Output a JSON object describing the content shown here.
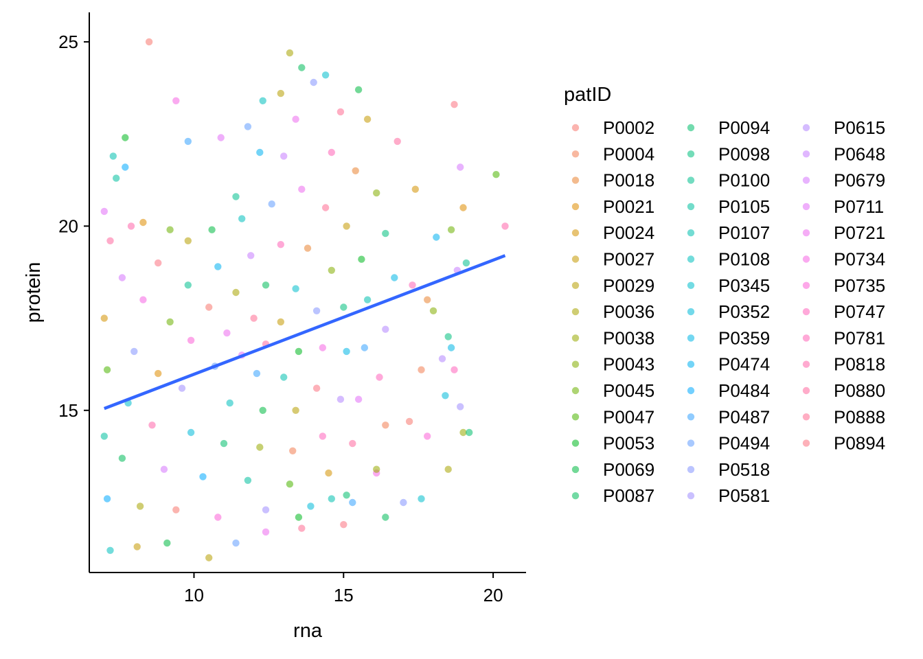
{
  "chart_data": {
    "type": "scatter",
    "title": "",
    "xlabel": "rna",
    "ylabel": "protein",
    "xlim": [
      6.5,
      21.1
    ],
    "ylim": [
      10.6,
      25.8
    ],
    "x_ticks": [
      10,
      15,
      20
    ],
    "y_ticks": [
      15,
      20,
      25
    ],
    "x_tick_labels": [
      "10",
      "15",
      "20"
    ],
    "y_tick_labels": [
      "15",
      "20",
      "25"
    ],
    "grid": false,
    "point_alpha": 0.55,
    "legend": {
      "title": "patID",
      "placement": "right",
      "columns": 3,
      "entries": [
        {
          "name": "P0002",
          "color": "#F8766D"
        },
        {
          "name": "P0004",
          "color": "#F27D52"
        },
        {
          "name": "P0018",
          "color": "#EA8331"
        },
        {
          "name": "P0021",
          "color": "#DE8C00"
        },
        {
          "name": "P0024",
          "color": "#D39200"
        },
        {
          "name": "P0027",
          "color": "#C59900"
        },
        {
          "name": "P0029",
          "color": "#B79F00"
        },
        {
          "name": "P0036",
          "color": "#A8A400"
        },
        {
          "name": "P0038",
          "color": "#97A900"
        },
        {
          "name": "P0043",
          "color": "#83AD00"
        },
        {
          "name": "P0045",
          "color": "#6BB100"
        },
        {
          "name": "P0047",
          "color": "#4BB400"
        },
        {
          "name": "P0053",
          "color": "#00B81F"
        },
        {
          "name": "P0069",
          "color": "#00BA42"
        },
        {
          "name": "P0087",
          "color": "#00BC59"
        },
        {
          "name": "P0094",
          "color": "#00BE6C"
        },
        {
          "name": "P0098",
          "color": "#00BF7D"
        },
        {
          "name": "P0100",
          "color": "#00C08E"
        },
        {
          "name": "P0105",
          "color": "#00C09F"
        },
        {
          "name": "P0107",
          "color": "#00C0AF"
        },
        {
          "name": "P0108",
          "color": "#00BFBE"
        },
        {
          "name": "P0345",
          "color": "#00BDCC"
        },
        {
          "name": "P0352",
          "color": "#00BAD9"
        },
        {
          "name": "P0359",
          "color": "#00B6E5"
        },
        {
          "name": "P0474",
          "color": "#00B0F0"
        },
        {
          "name": "P0484",
          "color": "#00A9FF"
        },
        {
          "name": "P0487",
          "color": "#35A2FF"
        },
        {
          "name": "P0494",
          "color": "#619CFF"
        },
        {
          "name": "P0518",
          "color": "#8494FF"
        },
        {
          "name": "P0581",
          "color": "#9F8CFF"
        },
        {
          "name": "P0615",
          "color": "#B385FF"
        },
        {
          "name": "P0648",
          "color": "#C77CFF"
        },
        {
          "name": "P0679",
          "color": "#D575FE"
        },
        {
          "name": "P0711",
          "color": "#E26EF7"
        },
        {
          "name": "P0721",
          "color": "#EC69EF"
        },
        {
          "name": "P0734",
          "color": "#F564E3"
        },
        {
          "name": "P0735",
          "color": "#FB61D7"
        },
        {
          "name": "P0747",
          "color": "#FF62BC"
        },
        {
          "name": "P0781",
          "color": "#FF63B6"
        },
        {
          "name": "P0818",
          "color": "#FF65A9"
        },
        {
          "name": "P0880",
          "color": "#FF689E"
        },
        {
          "name": "P0888",
          "color": "#FF6C91"
        },
        {
          "name": "P0894",
          "color": "#FC717F"
        }
      ]
    },
    "series": [
      {
        "type": "scatter",
        "points": [
          [
            8.5,
            25.0
          ],
          [
            13.2,
            24.7
          ],
          [
            13.6,
            24.3
          ],
          [
            14.4,
            24.1
          ],
          [
            14.0,
            23.9
          ],
          [
            9.4,
            23.4
          ],
          [
            18.7,
            23.3
          ],
          [
            12.9,
            23.6
          ],
          [
            15.5,
            23.7
          ],
          [
            12.3,
            23.4
          ],
          [
            11.8,
            22.7
          ],
          [
            13.4,
            22.9
          ],
          [
            14.9,
            23.1
          ],
          [
            15.8,
            22.9
          ],
          [
            7.7,
            22.4
          ],
          [
            7.3,
            21.9
          ],
          [
            9.8,
            22.3
          ],
          [
            10.9,
            22.4
          ],
          [
            16.8,
            22.3
          ],
          [
            17.4,
            21.0
          ],
          [
            20.1,
            21.4
          ],
          [
            7.4,
            21.3
          ],
          [
            7.7,
            21.6
          ],
          [
            18.9,
            21.6
          ],
          [
            20.4,
            20.0
          ],
          [
            19.0,
            20.5
          ],
          [
            18.6,
            19.9
          ],
          [
            19.1,
            19.0
          ],
          [
            18.1,
            19.7
          ],
          [
            18.8,
            18.8
          ],
          [
            17.3,
            18.4
          ],
          [
            17.8,
            18.0
          ],
          [
            18.0,
            17.7
          ],
          [
            18.5,
            17.0
          ],
          [
            18.6,
            16.7
          ],
          [
            18.3,
            16.4
          ],
          [
            18.7,
            16.1
          ],
          [
            17.6,
            16.1
          ],
          [
            19.0,
            14.4
          ],
          [
            19.2,
            14.4
          ],
          [
            18.4,
            15.4
          ],
          [
            18.9,
            15.1
          ],
          [
            17.8,
            14.3
          ],
          [
            17.2,
            14.7
          ],
          [
            18.5,
            13.4
          ],
          [
            16.4,
            12.1
          ],
          [
            17.6,
            12.6
          ],
          [
            17.0,
            12.5
          ],
          [
            16.1,
            13.3
          ],
          [
            15.0,
            11.9
          ],
          [
            10.5,
            11.0
          ],
          [
            9.1,
            11.4
          ],
          [
            7.2,
            11.2
          ],
          [
            11.4,
            11.4
          ],
          [
            12.4,
            11.7
          ],
          [
            13.6,
            11.8
          ],
          [
            8.1,
            11.3
          ],
          [
            13.5,
            12.1
          ],
          [
            14.6,
            12.6
          ],
          [
            15.3,
            12.5
          ],
          [
            7.0,
            20.4
          ],
          [
            7.2,
            19.6
          ],
          [
            7.0,
            17.5
          ],
          [
            7.1,
            16.1
          ],
          [
            7.0,
            14.3
          ],
          [
            7.1,
            12.6
          ],
          [
            7.6,
            18.6
          ],
          [
            7.9,
            20.0
          ],
          [
            8.3,
            20.1
          ],
          [
            9.2,
            19.9
          ],
          [
            11.4,
            20.8
          ],
          [
            12.2,
            22.0
          ],
          [
            13.0,
            21.9
          ],
          [
            14.6,
            22.0
          ],
          [
            15.4,
            21.5
          ],
          [
            16.1,
            20.9
          ],
          [
            16.4,
            19.8
          ],
          [
            16.7,
            18.6
          ],
          [
            16.4,
            17.2
          ],
          [
            16.2,
            15.9
          ],
          [
            16.4,
            14.6
          ],
          [
            16.1,
            13.4
          ],
          [
            15.1,
            12.7
          ],
          [
            13.9,
            12.4
          ],
          [
            12.4,
            12.3
          ],
          [
            10.8,
            12.1
          ],
          [
            9.4,
            12.3
          ],
          [
            8.2,
            12.4
          ],
          [
            7.6,
            13.7
          ],
          [
            7.8,
            15.2
          ],
          [
            8.0,
            16.6
          ],
          [
            8.3,
            18.0
          ],
          [
            8.8,
            19.0
          ],
          [
            9.8,
            19.6
          ],
          [
            10.6,
            19.9
          ],
          [
            11.6,
            20.2
          ],
          [
            12.6,
            20.6
          ],
          [
            13.6,
            21.0
          ],
          [
            14.4,
            20.5
          ],
          [
            15.1,
            20.0
          ],
          [
            15.6,
            19.1
          ],
          [
            15.8,
            18.0
          ],
          [
            15.7,
            16.7
          ],
          [
            15.5,
            15.3
          ],
          [
            15.3,
            14.1
          ],
          [
            14.5,
            13.3
          ],
          [
            13.2,
            13.0
          ],
          [
            11.8,
            13.1
          ],
          [
            10.3,
            13.2
          ],
          [
            9.0,
            13.4
          ],
          [
            8.6,
            14.6
          ],
          [
            8.8,
            16.0
          ],
          [
            9.2,
            17.4
          ],
          [
            9.8,
            18.4
          ],
          [
            10.8,
            18.9
          ],
          [
            11.9,
            19.2
          ],
          [
            12.9,
            19.5
          ],
          [
            13.8,
            19.4
          ],
          [
            14.6,
            18.8
          ],
          [
            15.0,
            17.8
          ],
          [
            15.1,
            16.6
          ],
          [
            14.9,
            15.3
          ],
          [
            14.3,
            14.3
          ],
          [
            13.3,
            13.9
          ],
          [
            12.2,
            14.0
          ],
          [
            11.0,
            14.1
          ],
          [
            9.9,
            14.4
          ],
          [
            9.6,
            15.6
          ],
          [
            9.9,
            16.9
          ],
          [
            10.5,
            17.8
          ],
          [
            11.4,
            18.2
          ],
          [
            12.4,
            18.4
          ],
          [
            13.4,
            18.3
          ],
          [
            14.1,
            17.7
          ],
          [
            14.3,
            16.7
          ],
          [
            14.1,
            15.6
          ],
          [
            13.4,
            15.0
          ],
          [
            12.3,
            15.0
          ],
          [
            11.2,
            15.2
          ],
          [
            10.7,
            16.2
          ],
          [
            11.1,
            17.1
          ],
          [
            12.0,
            17.5
          ],
          [
            12.9,
            17.4
          ],
          [
            13.5,
            16.6
          ],
          [
            13.0,
            15.9
          ],
          [
            12.1,
            16.0
          ],
          [
            11.6,
            16.5
          ],
          [
            12.4,
            16.8
          ]
        ]
      }
    ],
    "fit_line": {
      "name": "",
      "color": "#3366FF",
      "x": [
        7.0,
        20.4
      ],
      "y": [
        15.05,
        19.2
      ]
    }
  }
}
